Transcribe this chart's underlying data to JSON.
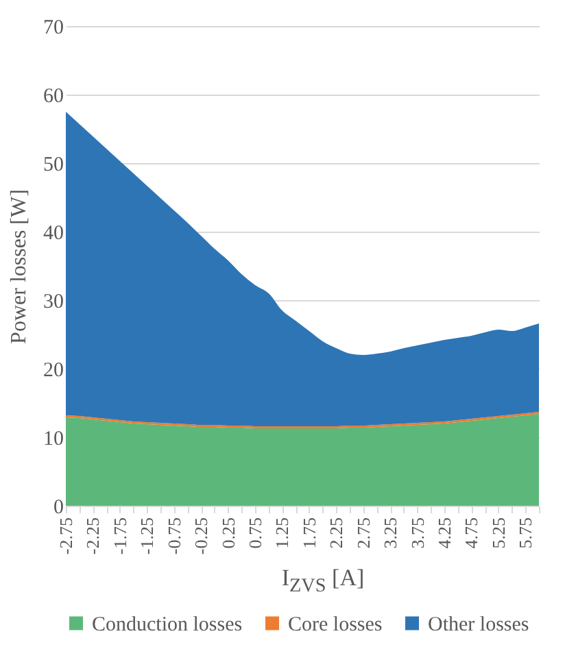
{
  "chart_data": {
    "type": "area",
    "stacked": true,
    "xlabel": "I$_{ZVS}$ [A]",
    "ylabel": "Power losses [W]",
    "categories": [
      "-2.75",
      null,
      "-2.25",
      null,
      "-1.75",
      null,
      "-1.25",
      null,
      "-0.75",
      null,
      "-0.25",
      null,
      "0.25",
      null,
      "0.75",
      null,
      "1.25",
      null,
      "1.75",
      null,
      "2.25",
      null,
      "2.75",
      null,
      "3.25",
      null,
      "3.75",
      null,
      "4.25",
      null,
      "4.75",
      null,
      "5.25",
      null,
      "5.75",
      null
    ],
    "series": [
      {
        "name": "Conduction losses",
        "color": "#5cb87a",
        "values": [
          12.9,
          12.8,
          12.6,
          12.4,
          12.2,
          12.0,
          11.9,
          11.8,
          11.7,
          11.6,
          11.5,
          11.5,
          11.4,
          11.4,
          11.3,
          11.3,
          11.3,
          11.3,
          11.3,
          11.3,
          11.3,
          11.4,
          11.4,
          11.5,
          11.6,
          11.7,
          11.8,
          11.9,
          12.0,
          12.2,
          12.4,
          12.6,
          12.8,
          13.0,
          13.2,
          13.4
        ]
      },
      {
        "name": "Core losses",
        "color": "#ed7d31",
        "values": [
          0.3,
          0.3,
          0.3,
          0.3,
          0.3,
          0.3,
          0.3,
          0.3,
          0.3,
          0.3,
          0.3,
          0.3,
          0.3,
          0.3,
          0.3,
          0.3,
          0.3,
          0.3,
          0.3,
          0.3,
          0.3,
          0.3,
          0.3,
          0.3,
          0.3,
          0.3,
          0.3,
          0.3,
          0.3,
          0.3,
          0.3,
          0.3,
          0.3,
          0.3,
          0.3,
          0.3
        ]
      },
      {
        "name": "Other losses",
        "color": "#2e75b6",
        "values": [
          44.3,
          42.6,
          41.0,
          39.4,
          37.8,
          36.2,
          34.5,
          32.8,
          31.1,
          29.4,
          27.6,
          25.7,
          24.1,
          22.1,
          20.6,
          19.4,
          16.9,
          15.4,
          13.9,
          12.4,
          11.4,
          10.5,
          10.3,
          10.4,
          10.6,
          11.0,
          11.3,
          11.6,
          11.9,
          12.0,
          12.1,
          12.4,
          12.6,
          12.2,
          12.5,
          12.9
        ]
      }
    ],
    "ylim": [
      0,
      70
    ],
    "yticks": [
      0,
      10,
      20,
      30,
      40,
      50,
      60,
      70
    ],
    "grid": "y",
    "legend": "bottom"
  }
}
